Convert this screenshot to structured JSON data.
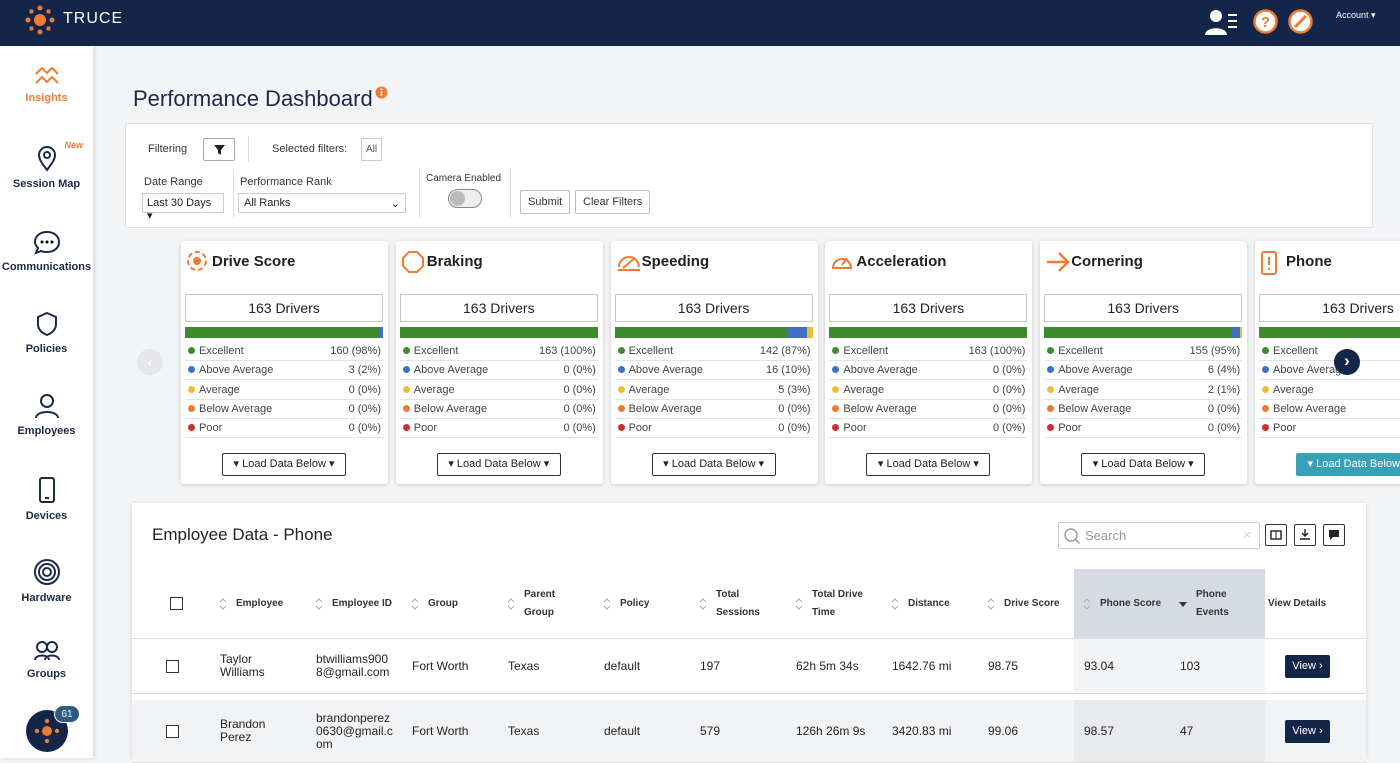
{
  "header": {
    "brand": "TRUCE",
    "account": "Account"
  },
  "sidebar": {
    "items": [
      {
        "label": "Insights"
      },
      {
        "label": "Session Map",
        "badge": "New"
      },
      {
        "label": "Communications"
      },
      {
        "label": "Policies"
      },
      {
        "label": "Employees"
      },
      {
        "label": "Devices"
      },
      {
        "label": "Hardware"
      },
      {
        "label": "Groups"
      }
    ],
    "notifications": 61
  },
  "title": "Performance Dashboard",
  "filters": {
    "filtering": "Filtering",
    "selected_label": "Selected filters:",
    "selected": "All",
    "date_label": "Date Range",
    "date_value": "Last 30 Days",
    "rank_label": "Performance Rank",
    "rank_value": "All Ranks",
    "camera_label": "Camera Enabled",
    "submit": "Submit",
    "clear": "Clear Filters"
  },
  "levels": [
    {
      "label": "Excellent",
      "color": "#3d8b2f"
    },
    {
      "label": "Above Average",
      "color": "#3f6fc6"
    },
    {
      "label": "Average",
      "color": "#f2bd35"
    },
    {
      "label": "Below Average",
      "color": "#ef7a32"
    },
    {
      "label": "Poor",
      "color": "#c9302c"
    }
  ],
  "cards": [
    {
      "title": "Drive Score",
      "drivers": "163 Drivers",
      "counts": [
        160,
        3,
        0,
        0,
        0
      ],
      "shares": [
        "(98%)",
        "(2%)",
        "(0%)",
        "(0%)",
        "(0%)"
      ],
      "button": "Load Data Below"
    },
    {
      "title": "Braking",
      "drivers": "163 Drivers",
      "counts": [
        163,
        0,
        0,
        0,
        0
      ],
      "shares": [
        "(100%)",
        "(0%)",
        "(0%)",
        "(0%)",
        "(0%)"
      ],
      "button": "Load Data Below"
    },
    {
      "title": "Speeding",
      "drivers": "163 Drivers",
      "counts": [
        142,
        16,
        5,
        0,
        0
      ],
      "shares": [
        "(87%)",
        "(10%)",
        "(3%)",
        "(0%)",
        "(0%)"
      ],
      "button": "Load Data Below"
    },
    {
      "title": "Acceleration",
      "drivers": "163 Drivers",
      "counts": [
        163,
        0,
        0,
        0,
        0
      ],
      "shares": [
        "(100%)",
        "(0%)",
        "(0%)",
        "(0%)",
        "(0%)"
      ],
      "button": "Load Data Below"
    },
    {
      "title": "Cornering",
      "drivers": "163 Drivers",
      "counts": [
        155,
        6,
        2,
        0,
        0
      ],
      "shares": [
        "(95%)",
        "(4%)",
        "(1%)",
        "(0%)",
        "(0%)"
      ],
      "button": "Load Data Below"
    },
    {
      "title": "Phone",
      "drivers": "163 Drivers",
      "button": "Load Data Below"
    }
  ],
  "table": {
    "title": "Employee Data - Phone",
    "search": "Search",
    "columns": [
      "Employee",
      "Employee ID",
      "Group",
      "Parent Group",
      "Policy",
      "Total Sessions",
      "Total Drive Time",
      "Distance",
      "Drive Score",
      "Phone Score",
      "Phone Events",
      "View Details"
    ],
    "rows": [
      [
        "Taylor Williams",
        "btwilliams9008@gmail.com",
        "Fort Worth",
        "Texas",
        "default",
        197,
        "62h 5m 34s",
        "1642.76 mi",
        98.75,
        93.04,
        103
      ],
      [
        "Brandon Perez",
        "brandonperez0630@gmail.com",
        "Fort Worth",
        "Texas",
        "default",
        579,
        "126h 26m 9s",
        "3420.83 mi",
        99.06,
        98.57,
        47
      ]
    ],
    "view": "View"
  }
}
